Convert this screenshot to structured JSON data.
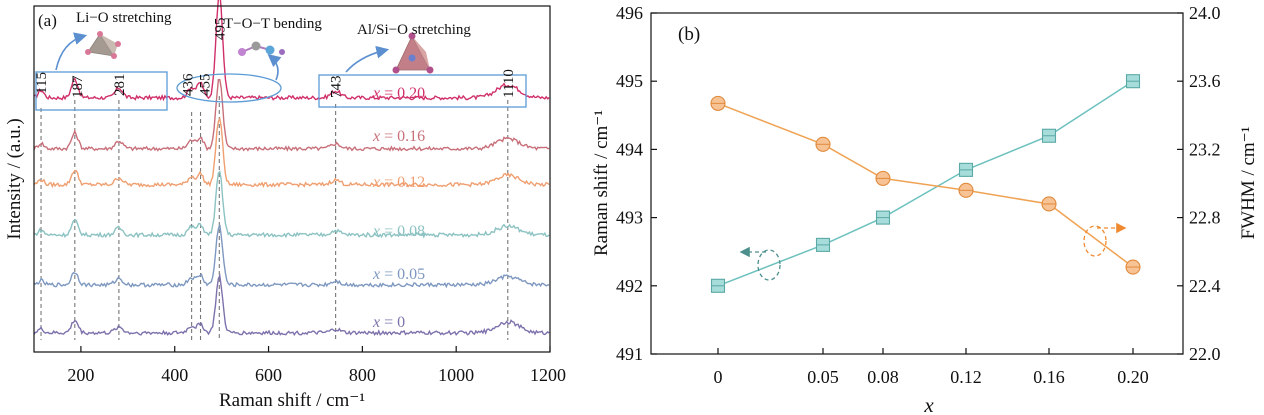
{
  "panel_a": {
    "panel_label": "(a)",
    "xlabel": "Raman shift / cm⁻¹",
    "ylabel": "Intensity / (a.u.)",
    "xticks": [
      "200",
      "400",
      "600",
      "800",
      "1000",
      "1200"
    ],
    "mode_labels": [
      "Li−O stretching",
      "T−O−T bending",
      "Al/Si−O stretching"
    ],
    "peak_labels": [
      "115",
      "187",
      "281",
      "436",
      "455",
      "495",
      "743",
      "1110"
    ],
    "series_labels": [
      {
        "x_text": "x",
        "val_text": " = 0.20"
      },
      {
        "x_text": "x",
        "val_text": " = 0.16"
      },
      {
        "x_text": "x",
        "val_text": " = 0.12"
      },
      {
        "x_text": "x",
        "val_text": " = 0.08"
      },
      {
        "x_text": "x",
        "val_text": " = 0.05"
      },
      {
        "x_text": "x",
        "val_text": " = 0"
      }
    ]
  },
  "panel_b": {
    "panel_label": "(b)",
    "xlabel": "x",
    "ylabel_left": "Raman shift / cm⁻¹",
    "ylabel_right": "FWHM / cm⁻¹",
    "xticks": [
      "0",
      "0.05",
      "0.08",
      "0.12",
      "0.16",
      "0.20"
    ],
    "yticks_left": [
      "491",
      "492",
      "493",
      "494",
      "495",
      "496"
    ],
    "yticks_right": [
      "22.0",
      "22.4",
      "22.8",
      "23.2",
      "23.6",
      "24.0"
    ]
  },
  "colors": {
    "x020": "#d0306a",
    "x016": "#c8707a",
    "x012": "#ef9f70",
    "x008": "#8cc2c2",
    "x005": "#7e98c0",
    "x000": "#7e72ac",
    "teal": "#6cc1be",
    "orange": "#f0a253",
    "box": "#5b9bd5",
    "arrow": "#5b8fd0",
    "dash": "#777777"
  },
  "chart_data": [
    {
      "type": "line",
      "title": "",
      "xlabel": "Raman shift / cm⁻¹",
      "ylabel": "Intensity / (a.u.)",
      "xlim": [
        100,
        1200
      ],
      "grid": false,
      "peaks_cm": [
        115,
        187,
        281,
        436,
        455,
        495,
        743,
        1110
      ],
      "series": [
        {
          "name": "x = 0.20",
          "x": [
            100,
            115,
            187,
            281,
            436,
            455,
            495,
            743,
            1110,
            1200
          ],
          "y": [
            0.2,
            0.26,
            0.55,
            0.32,
            0.34,
            0.45,
            2.8,
            0.24,
            0.4,
            0.2
          ]
        },
        {
          "name": "x = 0.16",
          "x": [
            100,
            115,
            187,
            281,
            436,
            455,
            495,
            743,
            1110,
            1200
          ],
          "y": [
            0.12,
            0.18,
            0.45,
            0.24,
            0.26,
            0.34,
            1.9,
            0.17,
            0.3,
            0.12
          ]
        },
        {
          "name": "x = 0.12",
          "x": [
            100,
            115,
            187,
            281,
            436,
            455,
            495,
            743,
            1110,
            1200
          ],
          "y": [
            0.12,
            0.17,
            0.42,
            0.22,
            0.25,
            0.32,
            1.8,
            0.16,
            0.28,
            0.12
          ]
        },
        {
          "name": "x = 0.08",
          "x": [
            100,
            115,
            187,
            281,
            436,
            455,
            495,
            743,
            1110,
            1200
          ],
          "y": [
            0.1,
            0.15,
            0.4,
            0.21,
            0.24,
            0.3,
            1.7,
            0.14,
            0.26,
            0.1
          ]
        },
        {
          "name": "x = 0.05",
          "x": [
            100,
            115,
            187,
            281,
            436,
            455,
            495,
            743,
            1110,
            1200
          ],
          "y": [
            0.1,
            0.14,
            0.38,
            0.2,
            0.22,
            0.28,
            1.6,
            0.13,
            0.25,
            0.1
          ]
        },
        {
          "name": "x = 0",
          "x": [
            100,
            115,
            187,
            281,
            436,
            455,
            495,
            743,
            1110,
            1200
          ],
          "y": [
            0.1,
            0.13,
            0.36,
            0.19,
            0.21,
            0.27,
            1.5,
            0.12,
            0.32,
            0.1
          ]
        }
      ]
    },
    {
      "type": "line",
      "title": "",
      "xlabel": "x",
      "ylabel": "Raman shift / cm⁻¹",
      "y2label": "FWHM / cm⁻¹",
      "categories": [
        "0",
        "0.05",
        "0.08",
        "0.12",
        "0.16",
        "0.20"
      ],
      "ylim": [
        491,
        496
      ],
      "y2lim": [
        22.0,
        24.0
      ],
      "grid": false,
      "series": [
        {
          "name": "Raman shift",
          "axis": "left",
          "marker": "square",
          "values": [
            492.0,
            492.6,
            493.0,
            493.7,
            494.2,
            495.0
          ]
        },
        {
          "name": "FWHM",
          "axis": "right",
          "marker": "circle",
          "values": [
            23.47,
            23.23,
            23.03,
            22.96,
            22.88,
            22.51
          ]
        }
      ]
    }
  ]
}
